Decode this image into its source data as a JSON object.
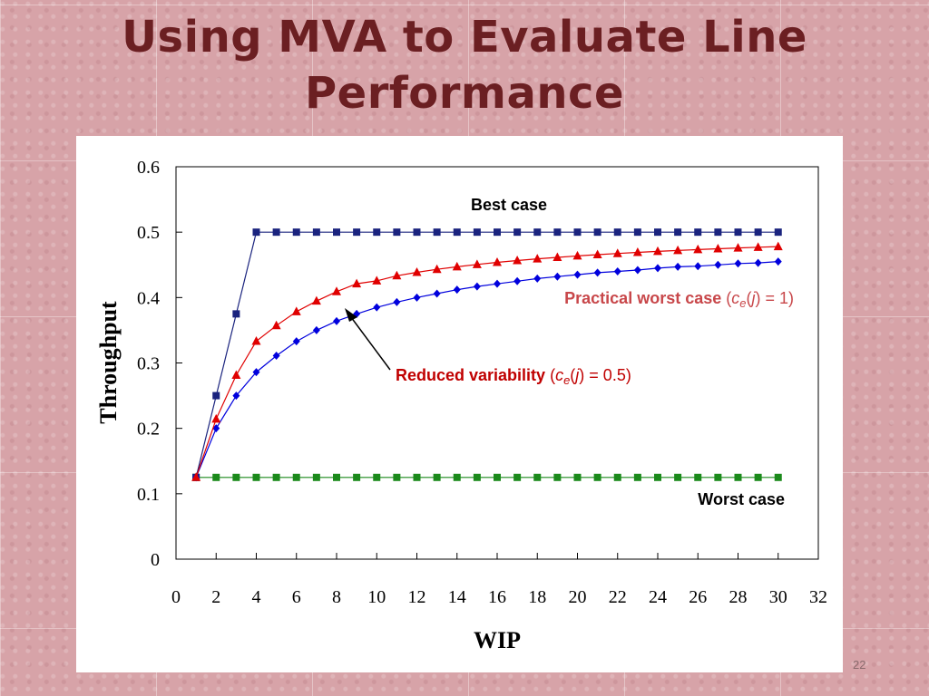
{
  "slide": {
    "title_line1": "Using MVA to Evaluate Line",
    "title_line2": "Performance",
    "slide_number": "22"
  },
  "colors": {
    "best_case": "#1a237e",
    "worst_case": "#1b8a1b",
    "practical_worst": "#e00000",
    "reduced_variability": "#0000dd",
    "annotation_red": "#c00000",
    "title": "#6b1f22"
  },
  "chart_data": {
    "type": "line",
    "title": "",
    "xlabel": "WIP",
    "ylabel": "Throughput",
    "xlim": [
      0,
      32
    ],
    "ylim": [
      0,
      0.6
    ],
    "x_ticks": [
      0,
      2,
      4,
      6,
      8,
      10,
      12,
      14,
      16,
      18,
      20,
      22,
      24,
      26,
      28,
      30,
      32
    ],
    "y_ticks": [
      0,
      0.1,
      0.2,
      0.3,
      0.4,
      0.5,
      0.6
    ],
    "series": [
      {
        "name": "Best case",
        "marker": "square",
        "color": "#1a237e",
        "x": [
          1,
          2,
          3,
          4,
          5,
          6,
          7,
          8,
          9,
          10,
          11,
          12,
          13,
          14,
          15,
          16,
          17,
          18,
          19,
          20,
          21,
          22,
          23,
          24,
          25,
          26,
          27,
          28,
          29,
          30
        ],
        "values": [
          0.125,
          0.25,
          0.375,
          0.5,
          0.5,
          0.5,
          0.5,
          0.5,
          0.5,
          0.5,
          0.5,
          0.5,
          0.5,
          0.5,
          0.5,
          0.5,
          0.5,
          0.5,
          0.5,
          0.5,
          0.5,
          0.5,
          0.5,
          0.5,
          0.5,
          0.5,
          0.5,
          0.5,
          0.5,
          0.5
        ]
      },
      {
        "name": "Practical worst case",
        "marker": "triangle",
        "color": "#e00000",
        "x": [
          1,
          2,
          3,
          4,
          5,
          6,
          7,
          8,
          9,
          10,
          11,
          12,
          13,
          14,
          15,
          16,
          17,
          18,
          19,
          20,
          21,
          22,
          23,
          24,
          25,
          26,
          27,
          28,
          29,
          30
        ],
        "values": [
          0.125,
          0.2143,
          0.2813,
          0.3333,
          0.3571,
          0.3784,
          0.3947,
          0.4091,
          0.4211,
          0.4255,
          0.4333,
          0.4386,
          0.4431,
          0.447,
          0.4506,
          0.4538,
          0.4566,
          0.4592,
          0.4615,
          0.4636,
          0.4656,
          0.4674,
          0.469,
          0.4706,
          0.472,
          0.4734,
          0.4746,
          0.4758,
          0.4769,
          0.4779
        ]
      },
      {
        "name": "Reduced variability",
        "marker": "diamond",
        "color": "#0000dd",
        "x": [
          1,
          2,
          3,
          4,
          5,
          6,
          7,
          8,
          9,
          10,
          11,
          12,
          13,
          14,
          15,
          16,
          17,
          18,
          19,
          20,
          21,
          22,
          23,
          24,
          25,
          26,
          27,
          28,
          29,
          30
        ],
        "values": [
          0.125,
          0.2,
          0.25,
          0.286,
          0.311,
          0.333,
          0.35,
          0.364,
          0.375,
          0.385,
          0.393,
          0.4,
          0.406,
          0.412,
          0.417,
          0.421,
          0.425,
          0.429,
          0.432,
          0.435,
          0.438,
          0.44,
          0.442,
          0.445,
          0.447,
          0.448,
          0.45,
          0.452,
          0.453,
          0.455
        ]
      },
      {
        "name": "Worst case",
        "marker": "square",
        "color": "#1b8a1b",
        "x": [
          1,
          2,
          3,
          4,
          5,
          6,
          7,
          8,
          9,
          10,
          11,
          12,
          13,
          14,
          15,
          16,
          17,
          18,
          19,
          20,
          21,
          22,
          23,
          24,
          25,
          26,
          27,
          28,
          29,
          30
        ],
        "values": [
          0.125,
          0.125,
          0.125,
          0.125,
          0.125,
          0.125,
          0.125,
          0.125,
          0.125,
          0.125,
          0.125,
          0.125,
          0.125,
          0.125,
          0.125,
          0.125,
          0.125,
          0.125,
          0.125,
          0.125,
          0.125,
          0.125,
          0.125,
          0.125,
          0.125,
          0.125,
          0.125,
          0.125,
          0.125,
          0.125
        ]
      }
    ],
    "annotations": {
      "best_case": "Best case",
      "worst_case": "Worst case",
      "practical_main": "Practical worst case",
      "practical_open": " (",
      "practical_c": "c",
      "practical_e": "e",
      "practical_paren_j_open": "(",
      "practical_j": "j",
      "practical_tail": ") = 1)",
      "reduced_main": "Reduced variability",
      "reduced_open": " (",
      "reduced_c": "c",
      "reduced_e": "e",
      "reduced_paren_j_open": "(",
      "reduced_j": "j",
      "reduced_tail": ") = 0.5)"
    }
  }
}
